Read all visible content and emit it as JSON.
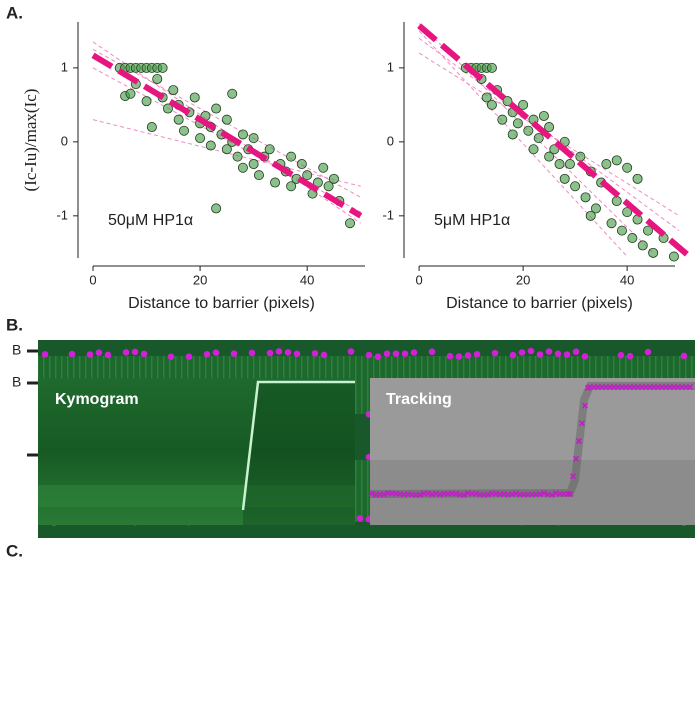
{
  "panel_labels": {
    "a": "A.",
    "b": "B.",
    "c": "C."
  },
  "barrier_labels": {
    "b": "B",
    "c": "B"
  },
  "kymo_labels": {
    "kymogram": "Kymogram",
    "tracking": "Tracking"
  },
  "chart_data": [
    {
      "type": "scatter",
      "xlabel": "Distance to barrier (pixels)",
      "ylabel": "(Ic-Iu)/max(Ic)",
      "annotation": "50μM HP1α",
      "color": "#4f9e4f",
      "x": [
        5,
        6,
        7,
        8,
        9,
        10,
        11,
        12,
        6,
        8,
        10,
        12,
        13,
        14,
        15,
        16,
        16,
        17,
        18,
        19,
        20,
        20,
        21,
        22,
        22,
        23,
        24,
        25,
        25,
        26,
        27,
        28,
        28,
        29,
        30,
        30,
        31,
        32,
        33,
        34,
        35,
        36,
        37,
        37,
        38,
        39,
        40,
        41,
        42,
        43,
        44,
        45,
        46,
        48,
        23,
        11,
        7,
        26,
        13
      ],
      "values": [
        1,
        1,
        1,
        1,
        1,
        1,
        1,
        1,
        0.62,
        0.78,
        0.55,
        0.85,
        0.6,
        0.45,
        0.7,
        0.3,
        0.5,
        0.15,
        0.4,
        0.6,
        0.25,
        0.05,
        0.35,
        -0.05,
        0.2,
        0.45,
        0.1,
        -0.1,
        0.3,
        0,
        -0.2,
        0.1,
        -0.35,
        -0.1,
        -0.3,
        0.05,
        -0.45,
        -0.2,
        -0.1,
        -0.55,
        -0.3,
        -0.4,
        -0.6,
        -0.2,
        -0.5,
        -0.3,
        -0.45,
        -0.7,
        -0.55,
        -0.35,
        -0.6,
        -0.5,
        -0.8,
        -1.1,
        -0.9,
        0.2,
        0.65,
        0.65,
        1
      ],
      "series": [
        {
          "color": "#f08ac4",
          "style": "thin",
          "x": [
            0,
            50
          ],
          "values": [
            1.35,
            -1.1
          ]
        },
        {
          "color": "#f08ac4",
          "style": "thin",
          "x": [
            0,
            50
          ],
          "values": [
            1.0,
            -0.95
          ]
        },
        {
          "color": "#f08ac4",
          "style": "thin",
          "x": [
            0,
            50
          ],
          "values": [
            0.3,
            -0.6
          ]
        },
        {
          "color": "#f08ac4",
          "style": "thin",
          "x": [
            0,
            50
          ],
          "values": [
            1.25,
            -0.75
          ]
        },
        {
          "color": "#e6157f",
          "style": "thick",
          "x": [
            0,
            50
          ],
          "values": [
            1.17,
            -1.0
          ]
        }
      ],
      "xlim": [
        -2.8,
        50.8
      ],
      "ylim": [
        -1.57,
        1.62
      ],
      "xticks": [
        0,
        20,
        40
      ],
      "yticks": [
        -1,
        0,
        1
      ]
    },
    {
      "type": "scatter",
      "xlabel": "Distance to barrier (pixels)",
      "annotation": "5μM HP1α",
      "color": "#4f9e4f",
      "x": [
        10,
        11,
        12,
        13,
        9,
        14,
        12,
        13,
        14,
        15,
        16,
        17,
        18,
        18,
        19,
        20,
        21,
        22,
        22,
        23,
        24,
        25,
        25,
        26,
        27,
        28,
        28,
        29,
        30,
        31,
        32,
        33,
        34,
        35,
        36,
        37,
        38,
        39,
        40,
        41,
        42,
        43,
        44,
        45,
        47,
        38,
        40,
        42,
        49,
        33
      ],
      "values": [
        1,
        1,
        1,
        1,
        1,
        1,
        0.85,
        0.6,
        0.5,
        0.7,
        0.3,
        0.55,
        0.4,
        0.1,
        0.25,
        0.5,
        0.15,
        0.3,
        -0.1,
        0.05,
        0.35,
        -0.2,
        0.2,
        -0.1,
        -0.3,
        0,
        -0.5,
        -0.3,
        -0.6,
        -0.2,
        -0.75,
        -0.4,
        -0.9,
        -0.55,
        -0.3,
        -1.1,
        -0.8,
        -1.2,
        -0.95,
        -1.3,
        -1.05,
        -1.4,
        -1.2,
        -1.5,
        -1.3,
        -0.25,
        -0.35,
        -0.5,
        -1.55,
        -1.0
      ],
      "series": [
        {
          "color": "#f08ac4",
          "style": "thin",
          "x": [
            0,
            45
          ],
          "values": [
            1.6,
            -1.5
          ]
        },
        {
          "color": "#f08ac4",
          "style": "thin",
          "x": [
            0,
            50
          ],
          "values": [
            1.2,
            -1.0
          ]
        },
        {
          "color": "#f08ac4",
          "style": "thin",
          "x": [
            0,
            40
          ],
          "values": [
            1.5,
            -1.55
          ]
        },
        {
          "color": "#f08ac4",
          "style": "thin",
          "x": [
            0,
            50
          ],
          "values": [
            1.4,
            -1.2
          ]
        },
        {
          "color": "#e6157f",
          "style": "thick",
          "x": [
            0,
            52
          ],
          "values": [
            1.57,
            -1.55
          ]
        }
      ],
      "xlim": [
        -2.9,
        49.2
      ],
      "ylim": [
        -1.57,
        1.62
      ],
      "xticks": [
        0,
        20,
        40
      ],
      "yticks": [
        -1,
        0,
        1
      ]
    }
  ]
}
